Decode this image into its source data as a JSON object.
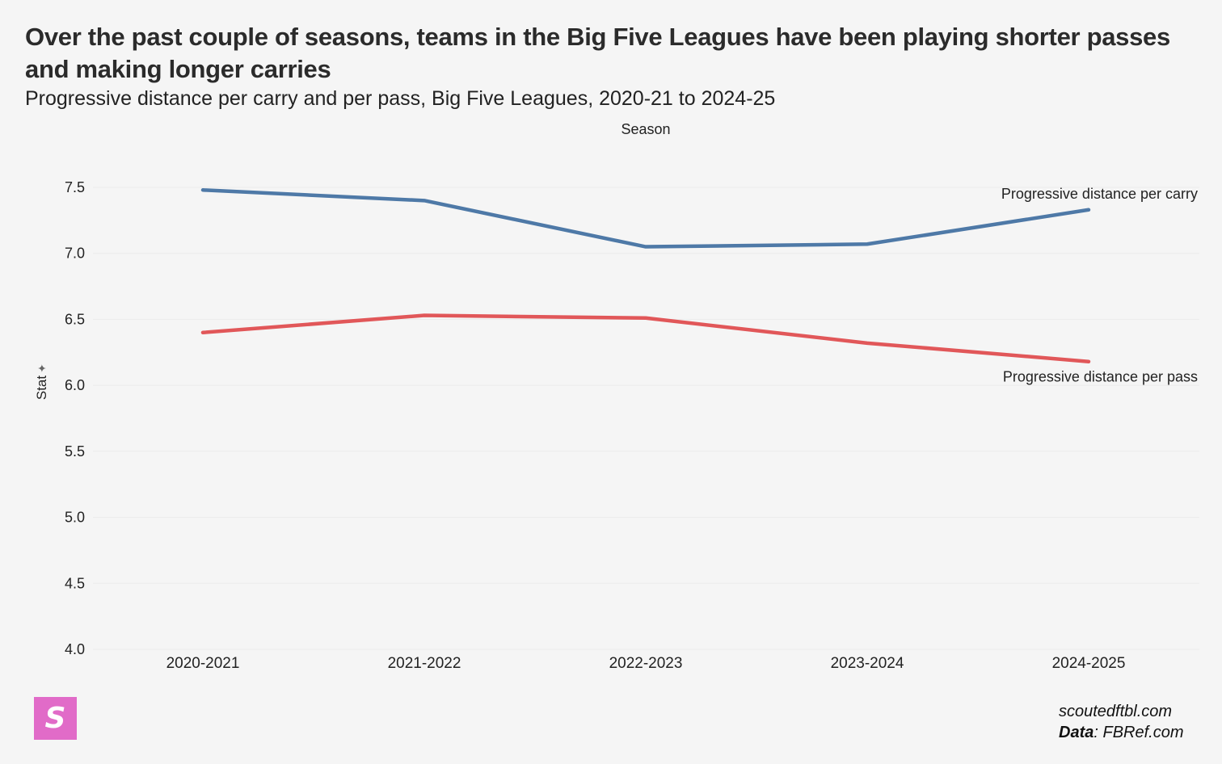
{
  "header": {
    "title": "Over the past couple of seasons, teams in the Big Five Leagues have been playing shorter passes and making longer carries",
    "subtitle": "Progressive distance per carry and per pass, Big Five Leagues, 2020-21 to 2024-25"
  },
  "chart_data": {
    "type": "line",
    "title": "Over the past couple of seasons, teams in the Big Five Leagues have been playing shorter passes and making longer carries",
    "subtitle": "Progressive distance per carry and per pass, Big Five Leagues, 2020-21 to 2024-25",
    "xlabel": "Season",
    "ylabel": "Stat",
    "categories": [
      "2020-2021",
      "2021-2022",
      "2022-2023",
      "2023-2024",
      "2024-2025"
    ],
    "yticks": [
      "4.0",
      "4.5",
      "5.0",
      "5.5",
      "6.0",
      "6.5",
      "7.0",
      "7.5"
    ],
    "ylim": [
      4.0,
      7.6
    ],
    "grid": true,
    "series": [
      {
        "name": "Progressive distance per carry",
        "color": "#4e79a7",
        "values": [
          7.48,
          7.4,
          7.05,
          7.07,
          7.33
        ]
      },
      {
        "name": "Progressive distance per pass",
        "color": "#e15759",
        "values": [
          6.4,
          6.53,
          6.51,
          6.32,
          6.18
        ]
      }
    ]
  },
  "footer": {
    "logo_letter": "S",
    "site": "scoutedftbl.com",
    "data_label": "Data",
    "data_source": ": FBRef.com"
  }
}
